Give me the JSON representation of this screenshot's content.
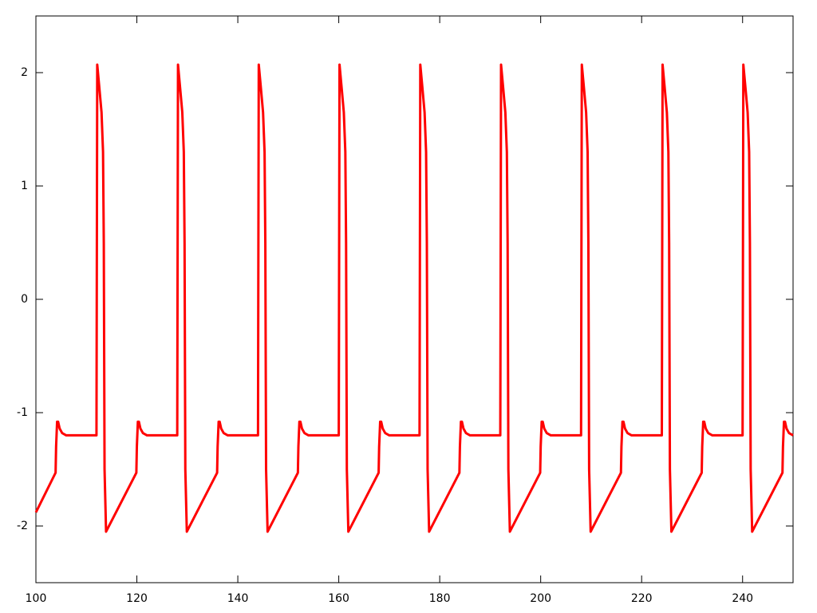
{
  "chart_data": {
    "type": "line",
    "color": "#ff0000",
    "x": [
      100,
      103.9,
      104,
      104.2,
      104.4,
      104.7,
      105.2,
      106,
      112,
      112.15,
      112.5,
      113,
      113.3,
      113.45,
      113.6,
      113.9,
      119.9,
      120,
      120.2,
      120.4,
      120.7,
      121.2,
      122,
      128,
      128.15,
      128.5,
      129,
      129.3,
      129.45,
      129.6,
      129.9,
      135.9,
      136,
      136.2,
      136.4,
      136.7,
      137.2,
      138,
      144,
      144.15,
      144.5,
      145,
      145.3,
      145.45,
      145.6,
      145.9,
      151.9,
      152,
      152.2,
      152.4,
      152.7,
      153.2,
      154,
      160,
      160.15,
      160.5,
      161,
      161.3,
      161.45,
      161.6,
      161.9,
      167.9,
      168,
      168.2,
      168.4,
      168.7,
      169.2,
      170,
      176,
      176.15,
      176.5,
      177,
      177.3,
      177.45,
      177.6,
      177.9,
      183.9,
      184,
      184.2,
      184.4,
      184.7,
      185.2,
      186,
      192,
      192.15,
      192.5,
      193,
      193.3,
      193.45,
      193.6,
      193.9,
      199.9,
      200,
      200.2,
      200.4,
      200.7,
      201.2,
      202,
      208,
      208.15,
      208.5,
      209,
      209.3,
      209.45,
      209.6,
      209.9,
      215.9,
      216,
      216.2,
      216.4,
      216.7,
      217.2,
      218,
      224,
      224.15,
      224.5,
      225,
      225.3,
      225.45,
      225.6,
      225.9,
      231.9,
      232,
      232.2,
      232.4,
      232.7,
      233.2,
      234,
      240,
      240.15,
      240.5,
      241,
      241.3,
      241.45,
      241.6,
      241.9,
      247.9,
      248,
      248.2,
      248.4,
      248.7,
      249.2,
      250
    ],
    "values": [
      -1.88,
      -1.53,
      -1.3,
      -1.08,
      -1.08,
      -1.14,
      -1.18,
      -1.2,
      -1.2,
      2.07,
      1.9,
      1.65,
      1.3,
      0.5,
      -1.5,
      -2.05,
      -1.53,
      -1.3,
      -1.08,
      -1.08,
      -1.14,
      -1.18,
      -1.2,
      -1.2,
      2.07,
      1.9,
      1.65,
      1.3,
      0.5,
      -1.5,
      -2.05,
      -1.53,
      -1.3,
      -1.08,
      -1.08,
      -1.14,
      -1.18,
      -1.2,
      -1.2,
      2.07,
      1.9,
      1.65,
      1.3,
      0.5,
      -1.5,
      -2.05,
      -1.53,
      -1.3,
      -1.08,
      -1.08,
      -1.14,
      -1.18,
      -1.2,
      -1.2,
      2.07,
      1.9,
      1.65,
      1.3,
      0.5,
      -1.5,
      -2.05,
      -1.53,
      -1.3,
      -1.08,
      -1.08,
      -1.14,
      -1.18,
      -1.2,
      -1.2,
      2.07,
      1.9,
      1.65,
      1.3,
      0.5,
      -1.5,
      -2.05,
      -1.53,
      -1.3,
      -1.08,
      -1.08,
      -1.14,
      -1.18,
      -1.2,
      -1.2,
      2.07,
      1.9,
      1.65,
      1.3,
      0.5,
      -1.5,
      -2.05,
      -1.53,
      -1.3,
      -1.08,
      -1.08,
      -1.14,
      -1.18,
      -1.2,
      -1.2,
      2.07,
      1.9,
      1.65,
      1.3,
      0.5,
      -1.5,
      -2.05,
      -1.53,
      -1.3,
      -1.08,
      -1.08,
      -1.14,
      -1.18,
      -1.2,
      -1.2,
      2.07,
      1.9,
      1.65,
      1.3,
      0.5,
      -1.5,
      -2.05,
      -1.53,
      -1.3,
      -1.08,
      -1.08,
      -1.14,
      -1.18,
      -1.2,
      -1.2,
      2.07,
      1.9,
      1.65,
      1.3,
      0.5,
      -1.5,
      -2.05,
      -1.53,
      -1.3,
      -1.08,
      -1.08,
      -1.14,
      -1.18,
      -1.2
    ],
    "xlim": [
      100,
      250
    ],
    "xticks": [
      100,
      120,
      140,
      160,
      180,
      200,
      220,
      240
    ],
    "ylim": [
      -2.5,
      2.5
    ],
    "yticks": [
      -2,
      -1,
      0,
      1,
      2
    ],
    "grid": false
  }
}
